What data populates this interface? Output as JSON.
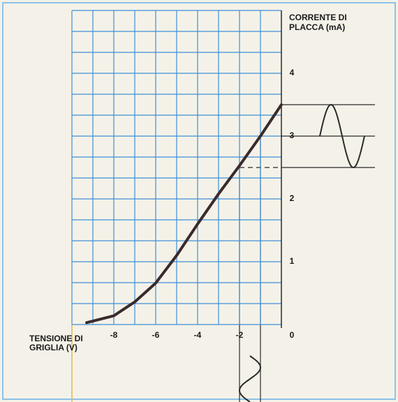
{
  "chart_data": {
    "type": "line",
    "y_label": [
      "CORRENTE DI",
      "PLACCA (mA)"
    ],
    "x_label": [
      "TENSIONE DI",
      "GRIGLIA (V)"
    ],
    "x": [
      -9.3,
      -8,
      -7,
      -6,
      -5,
      -4,
      -3,
      -2,
      -1,
      0
    ],
    "series": [
      {
        "color": "#3a2a2c",
        "values": [
          0.03,
          0.14,
          0.36,
          0.66,
          1.1,
          1.6,
          2.08,
          2.53,
          3.0,
          3.5
        ]
      }
    ],
    "xlim": [
      -10,
      0
    ],
    "xticks": [
      -8,
      -6,
      -4,
      -2
    ],
    "ylim": [
      0,
      5
    ],
    "yticks": [
      0,
      1,
      2,
      3,
      4
    ],
    "grid_color": "#3f8fd8"
  }
}
